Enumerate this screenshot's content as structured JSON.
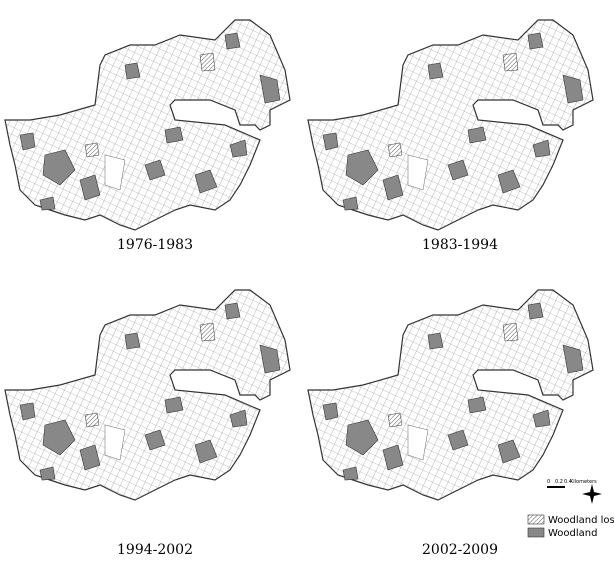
{
  "panels": [
    {
      "label": "1976-1983"
    },
    {
      "label": "1983-1994"
    },
    {
      "label": "1994-2002"
    },
    {
      "label": "2002-2009"
    }
  ],
  "legend": {
    "items": [
      {
        "label": "Woodland lost"
      },
      {
        "label": "Woodland"
      }
    ]
  },
  "scale_bar": {
    "ticks": [
      "0",
      "0.2",
      "0.4"
    ],
    "unit": "Kilometers"
  }
}
